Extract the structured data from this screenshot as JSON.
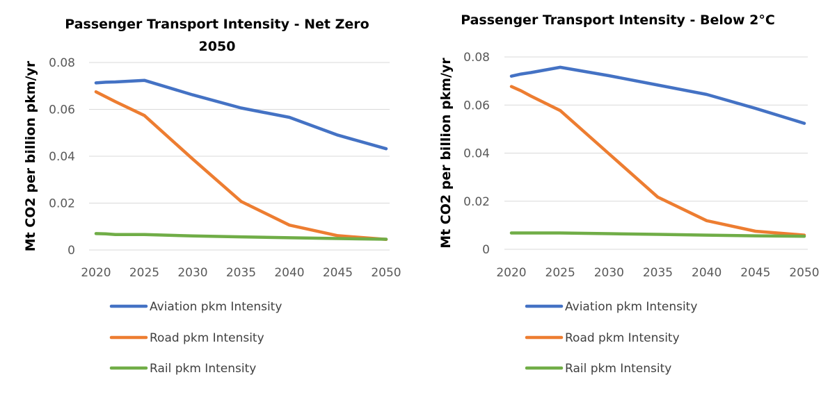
{
  "chart_data": [
    {
      "type": "line",
      "title": "Passenger Transport Intensity - Net Zero 2050",
      "title_lines": [
        "Passenger Transport Intensity - Net Zero",
        "2050"
      ],
      "ylabel": "Mt CO2 per billion pkm/yr",
      "xlabel": "",
      "ylim": [
        0,
        0.08
      ],
      "yticks": [
        "0",
        "0.02",
        "0.04",
        "0.06",
        "0.08"
      ],
      "xlim": [
        2020,
        2050
      ],
      "xticks": [
        "2020",
        "2025",
        "2030",
        "2035",
        "2040",
        "2045",
        "2050"
      ],
      "grid": true,
      "legend_position": "bottom",
      "series": [
        {
          "name": "Aviation pkm Intensity",
          "color": "#4472C4",
          "x": [
            2020,
            2021,
            2022,
            2025,
            2030,
            2035,
            2040,
            2045,
            2050
          ],
          "values": [
            0.0713,
            0.0716,
            0.0717,
            0.0724,
            0.0662,
            0.0606,
            0.0566,
            0.049,
            0.0432
          ]
        },
        {
          "name": "Road pkm Intensity",
          "color": "#ED7D31",
          "x": [
            2020,
            2022,
            2025,
            2030,
            2035,
            2040,
            2045,
            2050
          ],
          "values": [
            0.0675,
            0.0633,
            0.0574,
            0.0388,
            0.0207,
            0.0106,
            0.0061,
            0.0045
          ]
        },
        {
          "name": "Rail pkm Intensity",
          "color": "#70AD47",
          "x": [
            2020,
            2021,
            2022,
            2025,
            2030,
            2035,
            2040,
            2045,
            2050
          ],
          "values": [
            0.007,
            0.0069,
            0.0066,
            0.0066,
            0.006,
            0.0056,
            0.0052,
            0.0049,
            0.0046
          ]
        }
      ]
    },
    {
      "type": "line",
      "title": "Passenger Transport Intensity - Below 2°C",
      "title_lines": [
        "Passenger Transport Intensity - Below 2°C"
      ],
      "ylabel": "Mt CO2 per billion pkm/yr",
      "xlabel": "",
      "ylim": [
        0,
        0.08
      ],
      "yticks": [
        "0",
        "0.02",
        "0.04",
        "0.06",
        "0.08"
      ],
      "xlim": [
        2020,
        2050
      ],
      "xticks": [
        "2020",
        "2025",
        "2030",
        "2035",
        "2040",
        "2045",
        "2050"
      ],
      "grid": true,
      "legend_position": "bottom",
      "series": [
        {
          "name": "Aviation pkm Intensity",
          "color": "#4472C4",
          "x": [
            2020,
            2021,
            2022,
            2025,
            2030,
            2035,
            2040,
            2045,
            2050
          ],
          "values": [
            0.072,
            0.0729,
            0.0735,
            0.0757,
            0.0722,
            0.0683,
            0.0644,
            0.0586,
            0.0524
          ]
        },
        {
          "name": "Road pkm Intensity",
          "color": "#ED7D31",
          "x": [
            2020,
            2021,
            2022,
            2025,
            2030,
            2035,
            2040,
            2045,
            2050
          ],
          "values": [
            0.0677,
            0.0659,
            0.0637,
            0.0577,
            0.0397,
            0.0217,
            0.0119,
            0.0075,
            0.0059
          ]
        },
        {
          "name": "Rail pkm Intensity",
          "color": "#70AD47",
          "x": [
            2020,
            2021,
            2022,
            2025,
            2030,
            2035,
            2040,
            2045,
            2050
          ],
          "values": [
            0.0068,
            0.0068,
            0.0068,
            0.0068,
            0.0065,
            0.0062,
            0.0059,
            0.0056,
            0.0054
          ]
        }
      ]
    }
  ]
}
